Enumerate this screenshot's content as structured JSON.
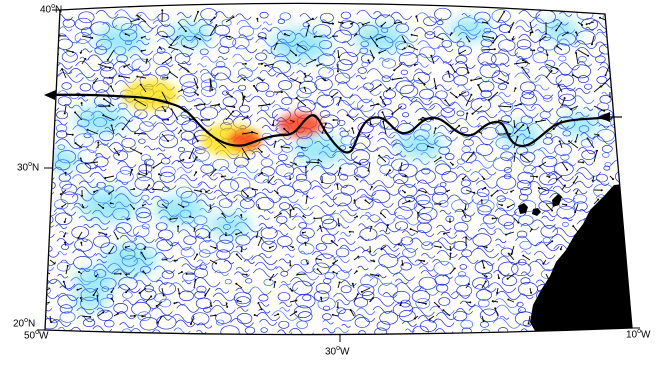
{
  "map": {
    "projection_note": "conic",
    "lat_labels": {
      "north": "40",
      "mid": "30",
      "south": "20",
      "suffix": "N"
    },
    "lon_labels": {
      "west": "50",
      "center": "30",
      "east": "10",
      "suffix": "W"
    },
    "colors": {
      "ocean": "#ffffff",
      "land": "#000000",
      "contour_main": "#1a2fd6",
      "contour_alt": "#3d6bff",
      "intensity_low": "#3bd2ff",
      "intensity_mid": "#ffe000",
      "intensity_high": "#ff2a00",
      "track": "#000000"
    },
    "features": [
      "wind-vectors",
      "streamline-contours",
      "intensity-heatmap",
      "storm-track",
      "land-mass"
    ]
  }
}
